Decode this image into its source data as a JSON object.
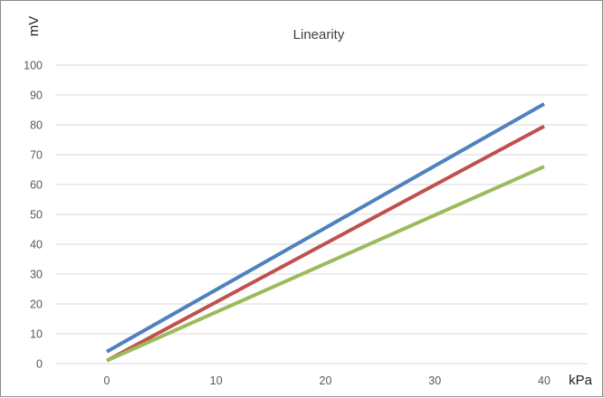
{
  "chart_data": {
    "type": "line",
    "title": "Linearity",
    "xlabel": "kPa",
    "ylabel": "mV",
    "xlim": [
      0,
      40
    ],
    "ylim": [
      0,
      100
    ],
    "x_ticks": [
      0,
      10,
      20,
      30,
      40
    ],
    "y_ticks": [
      0,
      10,
      20,
      30,
      40,
      50,
      60,
      70,
      80,
      90,
      100
    ],
    "grid": true,
    "legend": "none",
    "series": [
      {
        "color": "#4f81bd",
        "x": [
          0,
          40
        ],
        "y": [
          4,
          87
        ]
      },
      {
        "color": "#c0504d",
        "x": [
          0,
          40
        ],
        "y": [
          1,
          79.5
        ]
      },
      {
        "color": "#9bbb59",
        "x": [
          0,
          40
        ],
        "y": [
          1,
          66
        ]
      }
    ]
  }
}
